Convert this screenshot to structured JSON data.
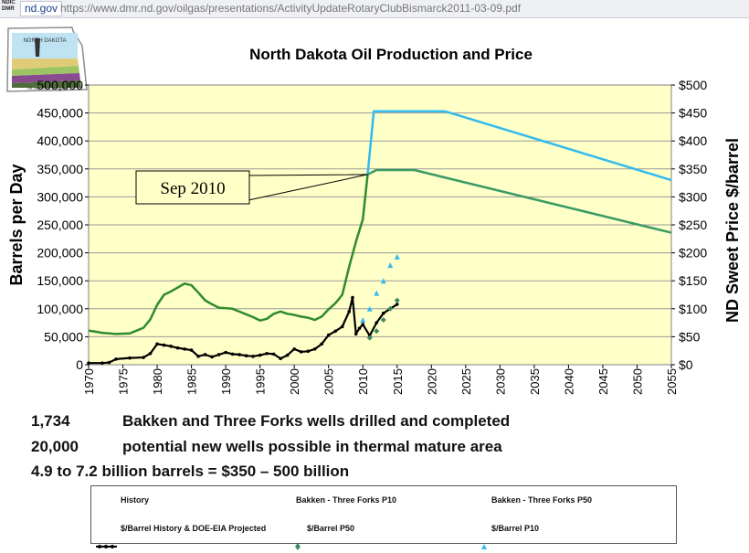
{
  "browser": {
    "badge": "NDIC DMR",
    "site": "nd.gov",
    "url": "https://www.dmr.nd.gov/oilgas/presentations/ActivityUpdateRotaryClubBismarck2011-03-09.pdf"
  },
  "logo": {
    "line1": "NORTH DAKOTA",
    "line2": "OIL AND GAS DIVISION"
  },
  "stats": [
    {
      "num": "1,734",
      "text": "Bakken and Three Forks wells drilled and completed"
    },
    {
      "num": "20,000",
      "text": "potential new wells possible in thermal mature area"
    },
    {
      "num": "",
      "text": "4.9 to 7.2 billion barrels = $350 – 500 billion"
    }
  ],
  "colors": {
    "plot_bg": "#ffffc8",
    "history": "#2e8b2e",
    "p10": "#33bbee",
    "p50": "#3a9a64",
    "price": "#000000"
  },
  "chart_data": {
    "type": "line",
    "title": "North Dakota Oil Production and Price",
    "ylabel": "Barrels per Day",
    "y2label": "ND Sweet Price $/barrel",
    "xlim": [
      1970,
      2055
    ],
    "ylim": [
      0,
      500000
    ],
    "y2lim": [
      0,
      500
    ],
    "x_ticks": [
      "1970",
      "1975",
      "1980",
      "1985",
      "1990",
      "1995",
      "2000",
      "2005",
      "2010",
      "2015",
      "2020",
      "2025",
      "2030",
      "2035",
      "2040",
      "2045",
      "2050",
      "2055"
    ],
    "y_ticks": [
      "0",
      "50,000",
      "100,000",
      "150,000",
      "200,000",
      "250,000",
      "300,000",
      "350,000",
      "400,000",
      "450,000",
      "500,000"
    ],
    "y2_ticks": [
      "$0",
      "$50",
      "$100",
      "$150",
      "$200",
      "$250",
      "$300",
      "$350",
      "$400",
      "$450",
      "$500"
    ],
    "grid": "horizontal",
    "annotation": {
      "text": "Sep 2010",
      "x": 2010.7,
      "y": 340000
    },
    "series": [
      {
        "name": "History",
        "axis": "left",
        "x": [
          1970,
          1972,
          1974,
          1976,
          1977,
          1978,
          1979,
          1980,
          1981,
          1982,
          1983,
          1984,
          1985,
          1986,
          1987,
          1988,
          1989,
          1990,
          1991,
          1992,
          1993,
          1994,
          1995,
          1996,
          1997,
          1998,
          1999,
          2000,
          2001,
          2002,
          2003,
          2004,
          2005,
          2006,
          2007,
          2008,
          2009,
          2010,
          2010.7
        ],
        "y": [
          61000,
          57000,
          55000,
          56000,
          61000,
          66000,
          81000,
          107000,
          125000,
          131000,
          138000,
          145000,
          142000,
          129000,
          115000,
          108000,
          102000,
          101000,
          100000,
          95000,
          90000,
          85000,
          79000,
          82000,
          91000,
          95000,
          91000,
          89000,
          86000,
          84000,
          80000,
          86000,
          99000,
          110000,
          125000,
          175000,
          220000,
          260000,
          340000
        ]
      },
      {
        "name": "Bakken - Three Forks P10",
        "axis": "left",
        "x": [
          2010.7,
          2011.6,
          2022,
          2055
        ],
        "y": [
          340000,
          453000,
          453000,
          330000
        ]
      },
      {
        "name": "Bakken - Three Forks P50",
        "axis": "left",
        "x": [
          2010.7,
          2012,
          2017.5,
          2055
        ],
        "y": [
          340000,
          348000,
          348000,
          236000
        ]
      },
      {
        "name": "$/Barrel History & DOE-EIA Projected",
        "axis": "right",
        "x": [
          1970,
          1972,
          1973,
          1974,
          1976,
          1978,
          1979,
          1980,
          1981,
          1982,
          1983,
          1984,
          1985,
          1986,
          1987,
          1988,
          1989,
          1990,
          1991,
          1992,
          1993,
          1994,
          1995,
          1996,
          1997,
          1998,
          1999,
          2000,
          2001,
          2002,
          2003,
          2004,
          2005,
          2006,
          2007,
          2008,
          2008.5,
          2009,
          2009.5,
          2010,
          2011,
          2012,
          2013,
          2014,
          2015
        ],
        "y": [
          3,
          3,
          4,
          10,
          12,
          13,
          20,
          37,
          35,
          33,
          30,
          28,
          26,
          15,
          18,
          14,
          18,
          22,
          19,
          18,
          16,
          15,
          17,
          20,
          19,
          11,
          17,
          28,
          23,
          24,
          28,
          37,
          53,
          60,
          68,
          95,
          120,
          55,
          65,
          72,
          52,
          75,
          92,
          100,
          108
        ]
      },
      {
        "name": "$/Barrel P50",
        "axis": "right",
        "x": [
          2011,
          2012,
          2013,
          2014,
          2015
        ],
        "y": [
          48,
          60,
          80,
          100,
          115
        ]
      },
      {
        "name": "$/Barrel P10",
        "axis": "right",
        "x": [
          2010,
          2011,
          2012,
          2013,
          2014,
          2015
        ],
        "y": [
          80,
          100,
          128,
          150,
          178,
          193
        ]
      }
    ]
  }
}
